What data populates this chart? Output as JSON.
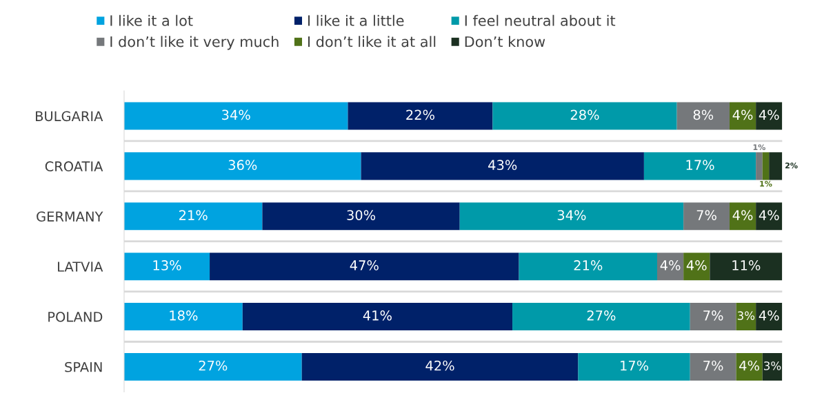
{
  "chart_data": {
    "type": "bar",
    "orientation": "horizontal",
    "stacked": true,
    "legend": "top",
    "grid": "y",
    "categories": [
      "BULGARIA",
      "CROATIA",
      "GERMANY",
      "LATVIA",
      "POLAND",
      "SPAIN"
    ],
    "series": [
      {
        "name": "I like it a lot",
        "color": "#00a3e0",
        "values": [
          34,
          36,
          21,
          13,
          18,
          27
        ],
        "value_labels": [
          "34%",
          "36%",
          "21%",
          "13%",
          "18%",
          "27%"
        ]
      },
      {
        "name": "I like it a little",
        "color": "#002169",
        "values": [
          22,
          43,
          30,
          47,
          41,
          42
        ],
        "value_labels": [
          "22%",
          "43%",
          "30%",
          "47%",
          "41%",
          "42%"
        ]
      },
      {
        "name": "I feel neutral about it",
        "color": "#009aa9",
        "values": [
          28,
          17,
          34,
          21,
          27,
          17
        ],
        "value_labels": [
          "28%",
          "17%",
          "34%",
          "21%",
          "27%",
          "17%"
        ]
      },
      {
        "name": "I don’t like it very much",
        "color": "#75787b",
        "values": [
          8,
          1,
          7,
          4,
          7,
          7
        ],
        "value_labels": [
          "8%",
          "1%",
          "7%",
          "4%",
          "7%",
          "7%"
        ]
      },
      {
        "name": "I don’t like it at all",
        "color": "#507218",
        "values": [
          4,
          1,
          4,
          4,
          3,
          4
        ],
        "value_labels": [
          "4%",
          "1%",
          "4%",
          "4%",
          "3%",
          "4%"
        ]
      },
      {
        "name": "Don’t know",
        "color": "#1b3021",
        "values": [
          4,
          2,
          4,
          11,
          4,
          3
        ],
        "value_labels": [
          "4%",
          "2%",
          "4%",
          "11%",
          "4%",
          "3%"
        ]
      }
    ]
  }
}
